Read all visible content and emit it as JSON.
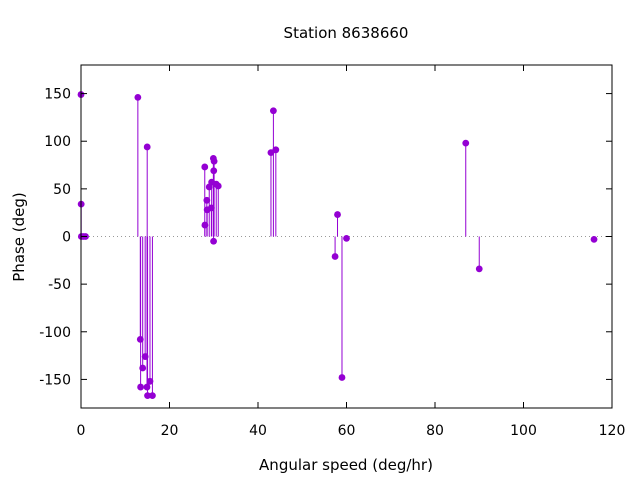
{
  "chart_data": {
    "type": "stem",
    "title": "Station 8638660",
    "xlabel": "Angular speed (deg/hr)",
    "ylabel": "Phase (deg)",
    "xlim": [
      0,
      120
    ],
    "ylim": [
      -180,
      180
    ],
    "xticks": [
      0,
      20,
      40,
      60,
      80,
      100,
      120
    ],
    "yticks": [
      -150,
      -100,
      -50,
      0,
      50,
      100,
      150
    ],
    "xtick_labels": [
      "0",
      "20",
      "40",
      "60",
      "80",
      "100",
      "120"
    ],
    "ytick_labels": [
      "-150",
      "-100",
      "-50",
      "0",
      "50",
      "100",
      "150"
    ],
    "zero_line": "dotted",
    "grid": false,
    "marker_color": "#9400d3",
    "points": [
      {
        "x": 0.0,
        "y": 149
      },
      {
        "x": 0.04,
        "y": 34
      },
      {
        "x": 0.08,
        "y": 0
      },
      {
        "x": 0.54,
        "y": 0
      },
      {
        "x": 1.02,
        "y": 0
      },
      {
        "x": 12.85,
        "y": 146
      },
      {
        "x": 13.4,
        "y": -108
      },
      {
        "x": 13.47,
        "y": -158
      },
      {
        "x": 13.94,
        "y": -138
      },
      {
        "x": 14.5,
        "y": -126
      },
      {
        "x": 14.92,
        "y": -158
      },
      {
        "x": 14.96,
        "y": 94
      },
      {
        "x": 15.04,
        "y": -167
      },
      {
        "x": 15.59,
        "y": -152
      },
      {
        "x": 16.14,
        "y": -167
      },
      {
        "x": 27.97,
        "y": 73
      },
      {
        "x": 28.0,
        "y": 12
      },
      {
        "x": 28.44,
        "y": 38
      },
      {
        "x": 28.51,
        "y": 28
      },
      {
        "x": 28.98,
        "y": 52
      },
      {
        "x": 29.46,
        "y": 30
      },
      {
        "x": 29.53,
        "y": 57
      },
      {
        "x": 29.91,
        "y": 82
      },
      {
        "x": 29.96,
        "y": -5
      },
      {
        "x": 30.0,
        "y": 69
      },
      {
        "x": 30.08,
        "y": 79
      },
      {
        "x": 30.56,
        "y": 55
      },
      {
        "x": 31.02,
        "y": 53
      },
      {
        "x": 42.93,
        "y": 88
      },
      {
        "x": 43.48,
        "y": 132
      },
      {
        "x": 44.03,
        "y": 91
      },
      {
        "x": 57.42,
        "y": -21
      },
      {
        "x": 57.97,
        "y": 23
      },
      {
        "x": 58.98,
        "y": -148
      },
      {
        "x": 60.0,
        "y": -2
      },
      {
        "x": 86.95,
        "y": 98
      },
      {
        "x": 90.0,
        "y": -34
      },
      {
        "x": 115.94,
        "y": -3
      }
    ]
  }
}
